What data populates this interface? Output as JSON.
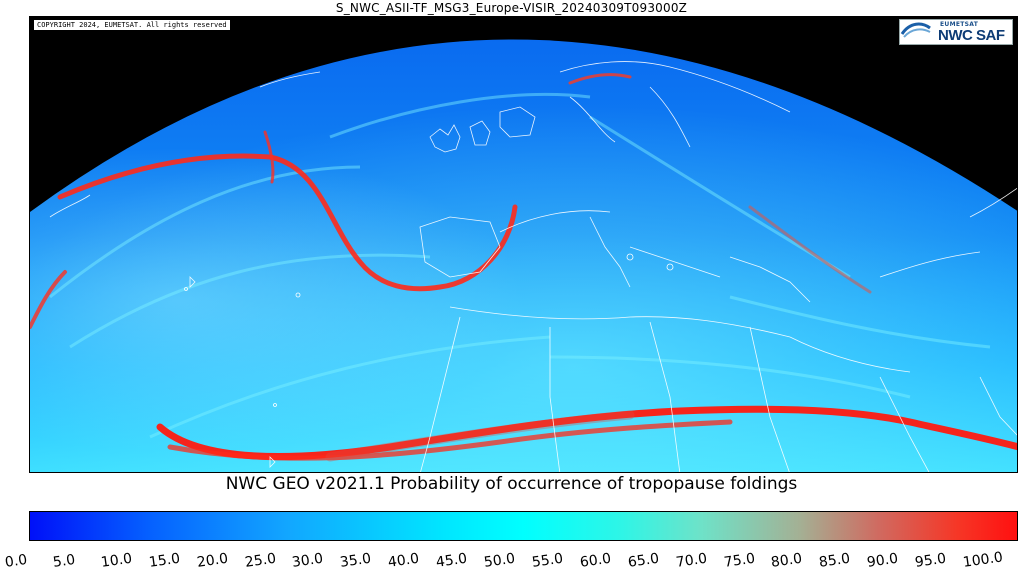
{
  "header": {
    "filename_title": "S_NWC_ASII-TF_MSG3_Europe-VISIR_20240309T093000Z"
  },
  "map": {
    "copyright": "COPYRIGHT 2024, EUMETSAT. All rights reserved",
    "logo": {
      "org": "EUMETSAT",
      "name": "NWC SAF",
      "color": "#0d3b75"
    },
    "product_title": "NWC GEO v2021.1 Probability of occurrence of tropopause foldings"
  },
  "colorbar": {
    "tick_labels": [
      "0.0",
      "5.0",
      "10.0",
      "15.0",
      "20.0",
      "25.0",
      "30.0",
      "35.0",
      "40.0",
      "45.0",
      "50.0",
      "55.0",
      "60.0",
      "65.0",
      "70.0",
      "75.0",
      "80.0",
      "85.0",
      "90.0",
      "95.0",
      "100.0"
    ],
    "min": 0,
    "max": 100,
    "colors": {
      "low": "#0010f8",
      "mid": "#00ffff",
      "high": "#ff1010"
    }
  }
}
